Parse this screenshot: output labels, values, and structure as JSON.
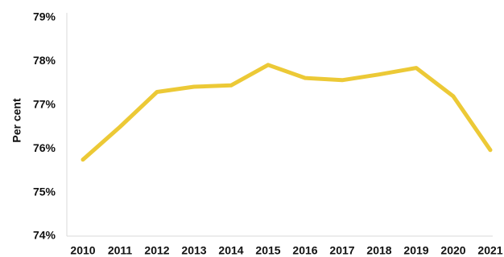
{
  "chart_data": {
    "type": "line",
    "title": "",
    "xlabel": "",
    "ylabel": "Per cent",
    "x": [
      "2010",
      "2011",
      "2012",
      "2013",
      "2014",
      "2015",
      "2016",
      "2017",
      "2018",
      "2019",
      "2020",
      "2021"
    ],
    "series": [
      {
        "values": [
          75.75,
          76.5,
          77.3,
          77.42,
          77.45,
          77.92,
          77.62,
          77.57,
          77.7,
          77.85,
          77.2,
          75.97
        ]
      }
    ],
    "ylim": [
      74,
      79
    ],
    "yticks": [
      74,
      75,
      76,
      77,
      78,
      79
    ],
    "ytick_labels": [
      "74%",
      "75%",
      "76%",
      "77%",
      "78%",
      "79%"
    ],
    "grid": false,
    "legend": "none",
    "colors": {
      "line": "#ecc936",
      "axis": "#d9d9d9",
      "text": "#111111"
    }
  }
}
